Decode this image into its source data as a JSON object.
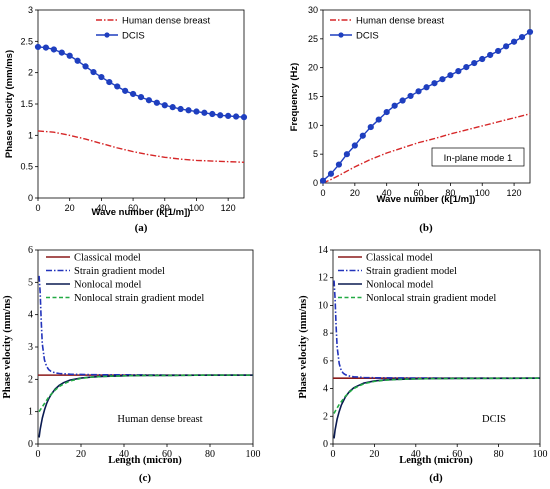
{
  "chart_data": [
    {
      "id": "a",
      "type": "line",
      "subcaption": "(a)",
      "xlabel": "Wave number (k[1/m])",
      "ylabel": "Phase velocity (mm/ms)",
      "xlim": [
        0,
        130
      ],
      "ylim": [
        0,
        3
      ],
      "xticks": [
        "0",
        "20",
        "40",
        "60",
        "80",
        "100",
        "120"
      ],
      "yticks": [
        "0",
        "0.5",
        "1",
        "1.5",
        "2",
        "2.5",
        "3"
      ],
      "legend_position": "top-right",
      "series": [
        {
          "name": "Human dense breast",
          "color": "#d62728",
          "style": "dash-dot",
          "x": [
            0,
            10,
            20,
            30,
            40,
            50,
            60,
            70,
            80,
            90,
            100,
            110,
            120,
            130
          ],
          "y": [
            1.07,
            1.05,
            1.0,
            0.94,
            0.87,
            0.8,
            0.74,
            0.69,
            0.65,
            0.62,
            0.6,
            0.59,
            0.58,
            0.57
          ]
        },
        {
          "name": "DCIS",
          "color": "#1f3fbf",
          "style": "solid-markers",
          "x": [
            0,
            5,
            10,
            15,
            20,
            25,
            30,
            35,
            40,
            45,
            50,
            55,
            60,
            65,
            70,
            75,
            80,
            85,
            90,
            95,
            100,
            105,
            110,
            115,
            120,
            125,
            130
          ],
          "y": [
            2.41,
            2.4,
            2.37,
            2.32,
            2.27,
            2.19,
            2.1,
            2.01,
            1.93,
            1.85,
            1.78,
            1.71,
            1.66,
            1.61,
            1.56,
            1.52,
            1.48,
            1.45,
            1.42,
            1.4,
            1.38,
            1.36,
            1.34,
            1.32,
            1.31,
            1.3,
            1.29
          ]
        }
      ]
    },
    {
      "id": "b",
      "type": "line",
      "subcaption": "(b)",
      "xlabel": "Wave number (k[1/m])",
      "ylabel": "Frequency (Hz)",
      "xlim": [
        0,
        130
      ],
      "ylim": [
        0,
        30
      ],
      "xticks": [
        "0",
        "20",
        "40",
        "60",
        "80",
        "100",
        "120"
      ],
      "yticks": [
        "0",
        "5",
        "10",
        "15",
        "20",
        "25",
        "30"
      ],
      "annotation": "In-plane mode 1",
      "legend_position": "top-left",
      "series": [
        {
          "name": "Human dense breast",
          "color": "#d62728",
          "style": "dash-dot",
          "x": [
            0,
            5,
            10,
            20,
            30,
            40,
            50,
            60,
            70,
            80,
            90,
            100,
            110,
            120,
            130
          ],
          "y": [
            0,
            0.6,
            1.3,
            2.8,
            4.1,
            5.2,
            6.1,
            7.0,
            7.7,
            8.5,
            9.2,
            9.9,
            10.6,
            11.3,
            12.0
          ]
        },
        {
          "name": "DCIS",
          "color": "#1f3fbf",
          "style": "solid-markers",
          "x": [
            0,
            5,
            10,
            15,
            20,
            25,
            30,
            35,
            40,
            45,
            50,
            55,
            60,
            65,
            70,
            75,
            80,
            85,
            90,
            95,
            100,
            105,
            110,
            115,
            120,
            125,
            130
          ],
          "y": [
            0.4,
            1.6,
            3.2,
            5.0,
            6.5,
            8.2,
            9.7,
            11.0,
            12.3,
            13.4,
            14.3,
            15.1,
            15.9,
            16.6,
            17.3,
            18.0,
            18.7,
            19.4,
            20.1,
            20.8,
            21.5,
            22.2,
            22.9,
            23.7,
            24.5,
            25.3,
            26.2
          ]
        }
      ]
    },
    {
      "id": "c",
      "type": "line",
      "subcaption": "(c)",
      "xlabel": "Length (micron)",
      "ylabel": "Phase velocity (mm/ns)",
      "xlim": [
        0,
        100
      ],
      "ylim": [
        0,
        6
      ],
      "xticks": [
        "0",
        "20",
        "40",
        "60",
        "80",
        "100"
      ],
      "yticks": [
        "0",
        "1",
        "2",
        "3",
        "4",
        "5",
        "6"
      ],
      "annotation": "Human dense breast",
      "legend_position": "top",
      "series": [
        {
          "name": "Classical model",
          "color": "#8b1a1a",
          "style": "solid",
          "x": [
            0,
            100
          ],
          "y": [
            2.13,
            2.13
          ]
        },
        {
          "name": "Strain gradient model",
          "color": "#2233bb",
          "style": "dash-dot",
          "x": [
            0.5,
            1,
            1.5,
            2,
            3,
            4,
            5,
            6,
            8,
            10,
            15,
            20,
            30,
            40,
            60,
            80,
            100
          ],
          "y": [
            5.2,
            4.7,
            3.8,
            3.1,
            2.6,
            2.4,
            2.3,
            2.25,
            2.2,
            2.18,
            2.16,
            2.15,
            2.14,
            2.14,
            2.13,
            2.13,
            2.13
          ]
        },
        {
          "name": "Nonlocal model",
          "color": "#0a1a50",
          "style": "solid",
          "x": [
            0.5,
            1,
            2,
            3,
            4,
            5,
            6,
            8,
            10,
            12,
            15,
            20,
            25,
            30,
            40,
            50,
            60,
            80,
            100
          ],
          "y": [
            0.2,
            0.45,
            0.8,
            1.05,
            1.25,
            1.4,
            1.52,
            1.7,
            1.82,
            1.9,
            1.98,
            2.04,
            2.07,
            2.09,
            2.11,
            2.12,
            2.12,
            2.13,
            2.13
          ]
        },
        {
          "name": "Nonlocal strain gradient model",
          "color": "#22aa44",
          "style": "dashed",
          "x": [
            0.5,
            1,
            2,
            3,
            4,
            5,
            6,
            8,
            10,
            12,
            15,
            20,
            25,
            30,
            40,
            50,
            60,
            80,
            100
          ],
          "y": [
            1.0,
            1.05,
            1.15,
            1.25,
            1.35,
            1.45,
            1.53,
            1.67,
            1.78,
            1.86,
            1.95,
            2.03,
            2.07,
            2.09,
            2.11,
            2.12,
            2.12,
            2.13,
            2.13
          ]
        }
      ]
    },
    {
      "id": "d",
      "type": "line",
      "subcaption": "(d)",
      "xlabel": "Length (micron)",
      "ylabel": "Phase velocity (mm/ns)",
      "xlim": [
        0,
        100
      ],
      "ylim": [
        0,
        14
      ],
      "xticks": [
        "0",
        "20",
        "40",
        "60",
        "80",
        "100"
      ],
      "yticks": [
        "0",
        "2",
        "4",
        "6",
        "8",
        "10",
        "12",
        "14"
      ],
      "annotation": "DCIS",
      "legend_position": "top",
      "series": [
        {
          "name": "Classical model",
          "color": "#8b1a1a",
          "style": "solid",
          "x": [
            0,
            100
          ],
          "y": [
            4.75,
            4.75
          ]
        },
        {
          "name": "Strain gradient model",
          "color": "#2233bb",
          "style": "dash-dot",
          "x": [
            0.5,
            1,
            1.5,
            2,
            3,
            4,
            5,
            6,
            8,
            10,
            15,
            20,
            30,
            40,
            60,
            80,
            100
          ],
          "y": [
            11.8,
            10.5,
            8.5,
            7.0,
            5.8,
            5.3,
            5.1,
            5.0,
            4.9,
            4.85,
            4.8,
            4.78,
            4.77,
            4.76,
            4.75,
            4.75,
            4.75
          ]
        },
        {
          "name": "Nonlocal model",
          "color": "#0a1a50",
          "style": "solid",
          "x": [
            0.5,
            1,
            2,
            3,
            4,
            5,
            6,
            8,
            10,
            12,
            15,
            20,
            25,
            30,
            40,
            50,
            60,
            80,
            100
          ],
          "y": [
            0.4,
            1.0,
            1.8,
            2.35,
            2.8,
            3.1,
            3.4,
            3.8,
            4.05,
            4.2,
            4.4,
            4.55,
            4.62,
            4.66,
            4.7,
            4.72,
            4.73,
            4.74,
            4.75
          ]
        },
        {
          "name": "Nonlocal strain gradient model",
          "color": "#22aa44",
          "style": "dashed",
          "x": [
            0.5,
            1,
            2,
            3,
            4,
            5,
            6,
            8,
            10,
            12,
            15,
            20,
            25,
            30,
            40,
            50,
            60,
            80,
            100
          ],
          "y": [
            2.2,
            2.35,
            2.6,
            2.85,
            3.05,
            3.25,
            3.45,
            3.75,
            4.0,
            4.15,
            4.35,
            4.52,
            4.6,
            4.65,
            4.7,
            4.72,
            4.73,
            4.74,
            4.75
          ]
        }
      ]
    }
  ]
}
